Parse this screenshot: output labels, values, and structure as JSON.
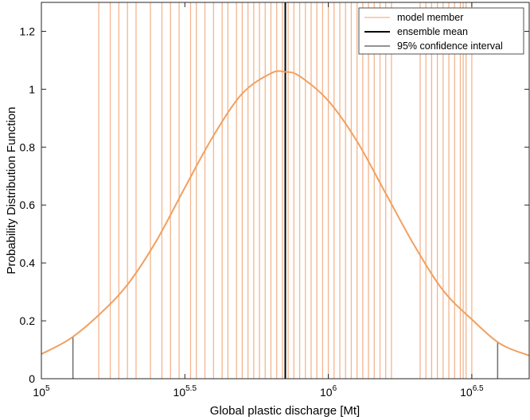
{
  "chart_data": {
    "type": "line",
    "title": "",
    "xlabel": "Global plastic discharge [Mt]",
    "ylabel": "Probability Distribution Function",
    "x_scale": "log",
    "xlim": [
      100000,
      5011872
    ],
    "ylim": [
      0,
      1.3
    ],
    "grid": false,
    "legend_position": "top-right",
    "x_ticks": [
      {
        "value": 100000,
        "base": "10",
        "exp": "5"
      },
      {
        "value": 316228,
        "base": "10",
        "exp": "5.5"
      },
      {
        "value": 1000000,
        "base": "10",
        "exp": "6"
      },
      {
        "value": 3162278,
        "base": "10",
        "exp": "6.5"
      }
    ],
    "y_ticks": [
      {
        "value": 0,
        "label": "0"
      },
      {
        "value": 0.2,
        "label": "0.2"
      },
      {
        "value": 0.4,
        "label": "0.4"
      },
      {
        "value": 0.6,
        "label": "0.6"
      },
      {
        "value": 0.8,
        "label": "0.8"
      },
      {
        "value": 1,
        "label": "1"
      },
      {
        "value": 1.2,
        "label": "1.2"
      }
    ],
    "series": [
      {
        "name": "model member",
        "kind": "vertical-lines",
        "color": "#f4b58e",
        "x": [
          158489,
          173780,
          186209,
          199526,
          213796,
          239883,
          263027,
          281838,
          301995,
          331131,
          346737,
          371535,
          398107,
          426580,
          446684,
          478630,
          501187,
          524807,
          549541,
          575440,
          602560,
          630957,
          660693,
          691831,
          724436,
          758578,
          794328,
          831764,
          870964,
          912011,
          954993,
          1000000,
          1047129,
          1096478,
          1148154,
          1202264,
          1258925,
          1318257,
          1380384,
          1445440,
          1513561,
          1584893,
          1659587,
          2089296,
          2187762,
          2290868,
          2398833,
          2511886,
          2630268,
          2754229,
          2884032,
          2951209,
          3019952,
          3162278
        ]
      },
      {
        "name": "ensemble mean",
        "kind": "vertical-lines",
        "color": "#000000",
        "x": [
          707946
        ]
      },
      {
        "name": "95% confidence interval",
        "kind": "vertical-lines",
        "color": "#6e6e6e",
        "x": [
          128825,
          3890451
        ]
      },
      {
        "name": "",
        "kind": "curve",
        "color": "#f0a060",
        "x": [
          100000,
          125893,
          158489,
          199526,
          251189,
          316228,
          398107,
          501187,
          630957,
          707946,
          794328,
          1000000,
          1258925,
          1584893,
          1995262,
          2511886,
          3162278,
          3981072,
          5011872
        ],
        "y": [
          0.085,
          0.138,
          0.22,
          0.325,
          0.475,
          0.66,
          0.84,
          0.985,
          1.055,
          1.06,
          1.045,
          0.96,
          0.82,
          0.64,
          0.46,
          0.305,
          0.205,
          0.12,
          0.08
        ]
      }
    ]
  }
}
